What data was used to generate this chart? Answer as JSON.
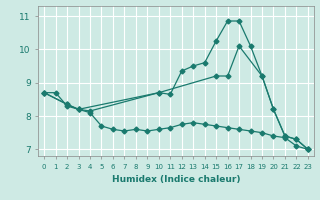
{
  "xlabel": "Humidex (Indice chaleur)",
  "bg_color": "#ceeae4",
  "grid_color": "#ffffff",
  "line_color": "#1a7a6e",
  "xlim": [
    -0.5,
    23.5
  ],
  "ylim": [
    6.8,
    11.3
  ],
  "xticks": [
    0,
    1,
    2,
    3,
    4,
    5,
    6,
    7,
    8,
    9,
    10,
    11,
    12,
    13,
    14,
    15,
    16,
    17,
    18,
    19,
    20,
    21,
    22,
    23
  ],
  "yticks": [
    7,
    8,
    9,
    10,
    11
  ],
  "line1_x": [
    0,
    1,
    2,
    3,
    4,
    5,
    6,
    7,
    8,
    9,
    10,
    11,
    12,
    13,
    14,
    15,
    16,
    17,
    18,
    19,
    20,
    21,
    22,
    23
  ],
  "line1_y": [
    8.7,
    8.7,
    8.3,
    8.2,
    8.1,
    7.7,
    7.6,
    7.55,
    7.6,
    7.55,
    7.6,
    7.65,
    7.75,
    7.8,
    7.75,
    7.7,
    7.65,
    7.6,
    7.55,
    7.5,
    7.4,
    7.35,
    7.1,
    7.0
  ],
  "line2_x": [
    0,
    2,
    3,
    4,
    10,
    11,
    12,
    13,
    14,
    15,
    16,
    17,
    18,
    19,
    20,
    21,
    22,
    23
  ],
  "line2_y": [
    8.7,
    8.35,
    8.2,
    8.15,
    8.7,
    8.65,
    9.35,
    9.5,
    9.6,
    10.25,
    10.85,
    10.85,
    10.1,
    9.2,
    8.2,
    7.4,
    7.3,
    7.0
  ],
  "line3_x": [
    0,
    2,
    3,
    10,
    15,
    16,
    17,
    19,
    20,
    21,
    22,
    23
  ],
  "line3_y": [
    8.7,
    8.35,
    8.2,
    8.7,
    9.2,
    9.2,
    10.1,
    9.2,
    8.2,
    7.4,
    7.3,
    7.0
  ]
}
